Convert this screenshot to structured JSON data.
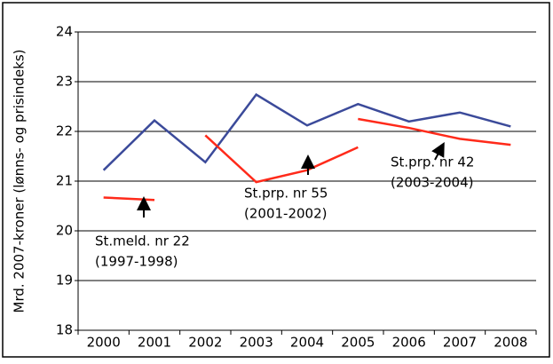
{
  "chart_data": {
    "type": "line",
    "y_label": "Mrd. 2007-kroner (lønns- og prisindeks)",
    "categories": [
      "2000",
      "2001",
      "2002",
      "2003",
      "2004",
      "2005",
      "2006",
      "2007",
      "2008"
    ],
    "series": [
      {
        "color": "#3b4a9a",
        "values": [
          21.22,
          22.22,
          21.38,
          22.74,
          22.12,
          22.55,
          22.2,
          22.38,
          22.1
        ]
      },
      {
        "name": "St.meld. nr 22",
        "note": "(1997-1998)",
        "color": "#ff2a1a",
        "values": [
          20.67,
          20.62,
          null,
          null,
          null,
          null,
          null,
          null,
          null
        ]
      },
      {
        "name": "St.prp. nr 55",
        "note": "(2001-2002)",
        "color": "#ff2a1a",
        "values": [
          null,
          null,
          21.92,
          20.98,
          21.22,
          21.68,
          null,
          null,
          null
        ]
      },
      {
        "name": "St.prp. nr 42",
        "note": "(2003-2004)",
        "color": "#ff2a1a",
        "values": [
          null,
          null,
          null,
          null,
          null,
          22.25,
          22.07,
          21.85,
          21.73
        ]
      }
    ],
    "ylim": [
      18,
      24
    ],
    "yticks": [
      18,
      19,
      20,
      21,
      22,
      23,
      24
    ],
    "grid": true
  }
}
